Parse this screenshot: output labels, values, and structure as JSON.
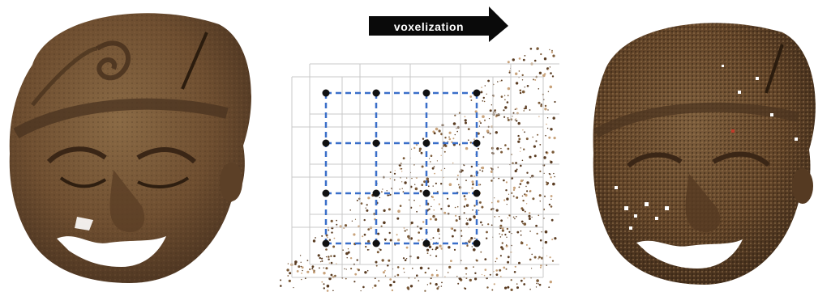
{
  "arrow": {
    "label": "voxelization"
  },
  "colors": {
    "clay_dark": "#4a3320",
    "clay_mid": "#6e4e30",
    "clay_light": "#8a6a45",
    "voxel_grid": "#3a6fc9",
    "arrow_fill": "#0a0a0a",
    "arrow_text": "#ffffff"
  },
  "panels": [
    {
      "name": "original-point-cloud",
      "description_icon": "mask-photo-icon"
    },
    {
      "name": "voxel-grid-close-up",
      "description_icon": "voxel-grid-icon"
    },
    {
      "name": "voxelized-point-cloud",
      "description_icon": "mask-voxel-icon"
    }
  ]
}
